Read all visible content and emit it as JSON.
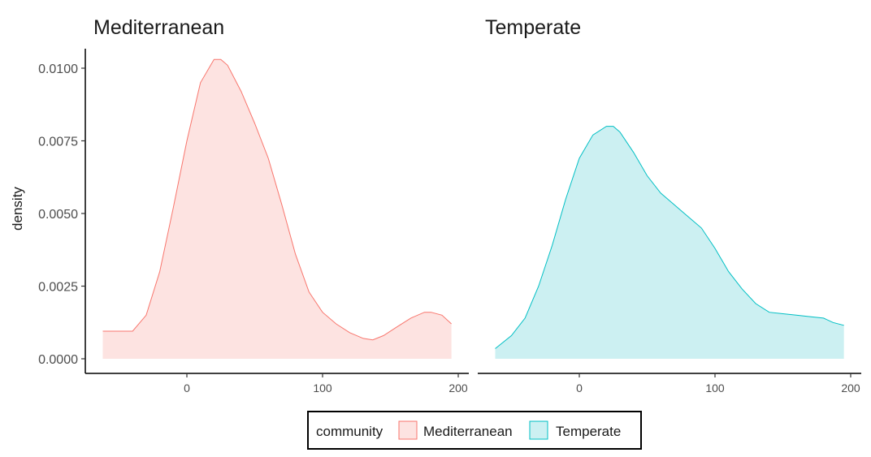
{
  "chart_data": {
    "type": "area",
    "ylabel": "density",
    "xlabel": "",
    "ylim": [
      0,
      0.0105
    ],
    "xlim": [
      -75,
      207
    ],
    "yticks": [
      "0.0000",
      "0.0025",
      "0.0050",
      "0.0075",
      "0.0100"
    ],
    "ytick_values": [
      0,
      0.0025,
      0.005,
      0.0075,
      0.01
    ],
    "xticks": [
      "0",
      "100",
      "200"
    ],
    "xtick_values": [
      0,
      100,
      200
    ],
    "grid": false,
    "legend": {
      "title": "community",
      "position": "bottom",
      "entries": [
        "Mediterranean",
        "Temperate"
      ]
    },
    "facets": [
      {
        "title": "Mediterranean",
        "fill": "#fde3e1",
        "stroke": "#f8766d",
        "x": [
          -62,
          -50,
          -40,
          -30,
          -20,
          -10,
          0,
          10,
          20,
          25,
          30,
          40,
          50,
          60,
          70,
          80,
          90,
          100,
          110,
          120,
          130,
          137,
          145,
          155,
          165,
          175,
          180,
          188,
          195
        ],
        "y": [
          0.00095,
          0.00095,
          0.00095,
          0.0015,
          0.003,
          0.0052,
          0.0075,
          0.0095,
          0.0103,
          0.0103,
          0.0101,
          0.0092,
          0.0081,
          0.0069,
          0.0053,
          0.0036,
          0.0023,
          0.0016,
          0.0012,
          0.0009,
          0.0007,
          0.00065,
          0.0008,
          0.0011,
          0.0014,
          0.0016,
          0.0016,
          0.0015,
          0.0012
        ]
      },
      {
        "title": "Temperate",
        "fill": "#ccf0f2",
        "stroke": "#00bfc4",
        "x": [
          -62,
          -50,
          -40,
          -30,
          -20,
          -10,
          0,
          10,
          20,
          25,
          30,
          40,
          50,
          60,
          70,
          80,
          90,
          100,
          110,
          120,
          130,
          140,
          150,
          160,
          170,
          180,
          187,
          195
        ],
        "y": [
          0.00035,
          0.0008,
          0.0014,
          0.0025,
          0.0039,
          0.0055,
          0.0069,
          0.0077,
          0.008,
          0.008,
          0.0078,
          0.0071,
          0.0063,
          0.0057,
          0.0053,
          0.0049,
          0.0045,
          0.0038,
          0.003,
          0.0024,
          0.0019,
          0.0016,
          0.00155,
          0.0015,
          0.00145,
          0.0014,
          0.00125,
          0.00115
        ]
      }
    ]
  }
}
